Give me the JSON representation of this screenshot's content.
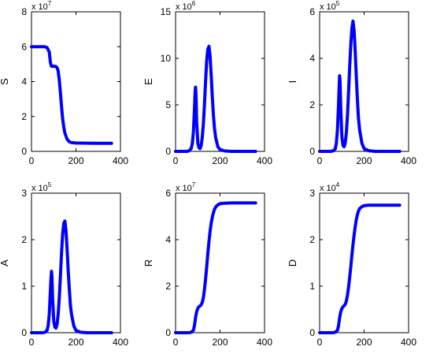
{
  "style": {
    "line_color": "#0000ff",
    "axis_color": "#000000",
    "background": "#ffffff"
  },
  "chart_data": [
    {
      "type": "line",
      "ylabel": "S",
      "xlabel": "",
      "title": "",
      "multiplier_base": "x 10",
      "multiplier_exp": "7",
      "xlim": [
        0,
        400
      ],
      "ylim": [
        0,
        8
      ],
      "xticks": [
        "0",
        "200",
        "400"
      ],
      "yticks": [
        "0",
        "2",
        "4",
        "6",
        "8"
      ],
      "series": [
        {
          "color": "#0000ff",
          "x": [
            0,
            20,
            40,
            60,
            70,
            80,
            85,
            90,
            100,
            110,
            115,
            120,
            125,
            130,
            135,
            140,
            145,
            150,
            160,
            170,
            180,
            200,
            250,
            300,
            360
          ],
          "y": [
            6.0,
            6.0,
            6.0,
            6.0,
            5.95,
            5.7,
            5.1,
            4.88,
            4.88,
            4.86,
            4.8,
            4.6,
            4.1,
            3.4,
            2.6,
            1.9,
            1.4,
            1.05,
            0.7,
            0.55,
            0.5,
            0.48,
            0.47,
            0.46,
            0.46
          ]
        }
      ]
    },
    {
      "type": "line",
      "ylabel": "E",
      "xlabel": "",
      "title": "",
      "multiplier_base": "x 10",
      "multiplier_exp": "6",
      "xlim": [
        0,
        400
      ],
      "ylim": [
        0,
        15
      ],
      "xticks": [
        "0",
        "200",
        "400"
      ],
      "yticks": [
        "0",
        "5",
        "10",
        "15"
      ],
      "series": [
        {
          "color": "#0000ff",
          "x": [
            0,
            50,
            60,
            70,
            75,
            80,
            85,
            88,
            90,
            92,
            95,
            100,
            105,
            110,
            115,
            120,
            125,
            130,
            135,
            140,
            145,
            150,
            155,
            160,
            165,
            170,
            175,
            180,
            190,
            200,
            220,
            250,
            300,
            360
          ],
          "y": [
            0,
            0,
            0.05,
            0.3,
            0.8,
            2.0,
            4.5,
            6.5,
            6.9,
            6.0,
            3.2,
            0.9,
            0.4,
            0.3,
            0.6,
            1.5,
            2.9,
            5.0,
            7.5,
            9.8,
            11.0,
            11.3,
            10.3,
            8.3,
            6.0,
            4.0,
            2.5,
            1.5,
            0.5,
            0.2,
            0.05,
            0,
            0,
            0
          ]
        }
      ]
    },
    {
      "type": "line",
      "ylabel": "I",
      "xlabel": "",
      "title": "",
      "multiplier_base": "x 10",
      "multiplier_exp": "5",
      "xlim": [
        0,
        400
      ],
      "ylim": [
        0,
        6
      ],
      "xticks": [
        "0",
        "200",
        "400"
      ],
      "yticks": [
        "0",
        "2",
        "4",
        "6"
      ],
      "series": [
        {
          "color": "#0000ff",
          "x": [
            0,
            50,
            60,
            70,
            75,
            80,
            85,
            88,
            90,
            92,
            95,
            100,
            105,
            110,
            115,
            120,
            125,
            130,
            135,
            140,
            145,
            150,
            155,
            160,
            165,
            170,
            175,
            180,
            190,
            200,
            220,
            250,
            300,
            360
          ],
          "y": [
            0,
            0,
            0.02,
            0.1,
            0.35,
            0.9,
            2.0,
            2.9,
            3.25,
            3.0,
            1.9,
            0.6,
            0.25,
            0.2,
            0.35,
            0.8,
            1.5,
            2.5,
            3.6,
            4.6,
            5.3,
            5.6,
            5.2,
            4.3,
            3.2,
            2.2,
            1.4,
            0.9,
            0.35,
            0.12,
            0.03,
            0,
            0,
            0
          ]
        }
      ]
    },
    {
      "type": "line",
      "ylabel": "A",
      "xlabel": "",
      "title": "",
      "multiplier_base": "x 10",
      "multiplier_exp": "5",
      "xlim": [
        0,
        400
      ],
      "ylim": [
        0,
        3
      ],
      "xticks": [
        "0",
        "200",
        "400"
      ],
      "yticks": [
        "0",
        "1",
        "2",
        "3"
      ],
      "series": [
        {
          "color": "#0000ff",
          "x": [
            0,
            50,
            60,
            70,
            75,
            80,
            85,
            88,
            90,
            92,
            95,
            100,
            105,
            110,
            115,
            120,
            125,
            130,
            135,
            140,
            145,
            150,
            155,
            160,
            165,
            170,
            175,
            180,
            190,
            200,
            220,
            250,
            300,
            360
          ],
          "y": [
            0,
            0,
            0.01,
            0.05,
            0.15,
            0.4,
            0.9,
            1.2,
            1.32,
            1.2,
            0.75,
            0.25,
            0.12,
            0.1,
            0.18,
            0.4,
            0.75,
            1.2,
            1.7,
            2.1,
            2.35,
            2.4,
            2.2,
            1.8,
            1.35,
            0.95,
            0.6,
            0.4,
            0.15,
            0.05,
            0.01,
            0,
            0,
            0
          ]
        }
      ]
    },
    {
      "type": "line",
      "ylabel": "R",
      "xlabel": "",
      "title": "",
      "multiplier_base": "x 10",
      "multiplier_exp": "7",
      "xlim": [
        0,
        400
      ],
      "ylim": [
        0,
        6
      ],
      "xticks": [
        "0",
        "200",
        "400"
      ],
      "yticks": [
        "0",
        "2",
        "4",
        "6"
      ],
      "series": [
        {
          "color": "#0000ff",
          "x": [
            0,
            60,
            70,
            80,
            85,
            90,
            95,
            100,
            105,
            110,
            115,
            120,
            125,
            130,
            135,
            140,
            145,
            150,
            155,
            160,
            165,
            170,
            175,
            180,
            190,
            200,
            220,
            250,
            300,
            360
          ],
          "y": [
            0,
            0,
            0.02,
            0.1,
            0.3,
            0.65,
            0.9,
            1.05,
            1.12,
            1.15,
            1.2,
            1.3,
            1.5,
            1.85,
            2.3,
            2.85,
            3.4,
            3.9,
            4.35,
            4.7,
            4.95,
            5.15,
            5.3,
            5.4,
            5.5,
            5.55,
            5.57,
            5.58,
            5.58,
            5.58
          ]
        }
      ]
    },
    {
      "type": "line",
      "ylabel": "D",
      "xlabel": "",
      "title": "",
      "multiplier_base": "x 10",
      "multiplier_exp": "4",
      "xlim": [
        0,
        400
      ],
      "ylim": [
        0,
        3
      ],
      "xticks": [
        "0",
        "200",
        "400"
      ],
      "yticks": [
        "0",
        "1",
        "2",
        "3"
      ],
      "series": [
        {
          "color": "#0000ff",
          "x": [
            0,
            60,
            70,
            80,
            85,
            90,
            95,
            100,
            105,
            110,
            115,
            120,
            125,
            130,
            135,
            140,
            145,
            150,
            155,
            160,
            165,
            170,
            175,
            180,
            190,
            200,
            220,
            250,
            300,
            360
          ],
          "y": [
            0,
            0,
            0.01,
            0.05,
            0.15,
            0.32,
            0.45,
            0.52,
            0.56,
            0.58,
            0.61,
            0.68,
            0.8,
            0.97,
            1.18,
            1.42,
            1.67,
            1.9,
            2.1,
            2.28,
            2.43,
            2.54,
            2.62,
            2.67,
            2.71,
            2.73,
            2.74,
            2.74,
            2.74,
            2.74
          ]
        }
      ]
    }
  ]
}
